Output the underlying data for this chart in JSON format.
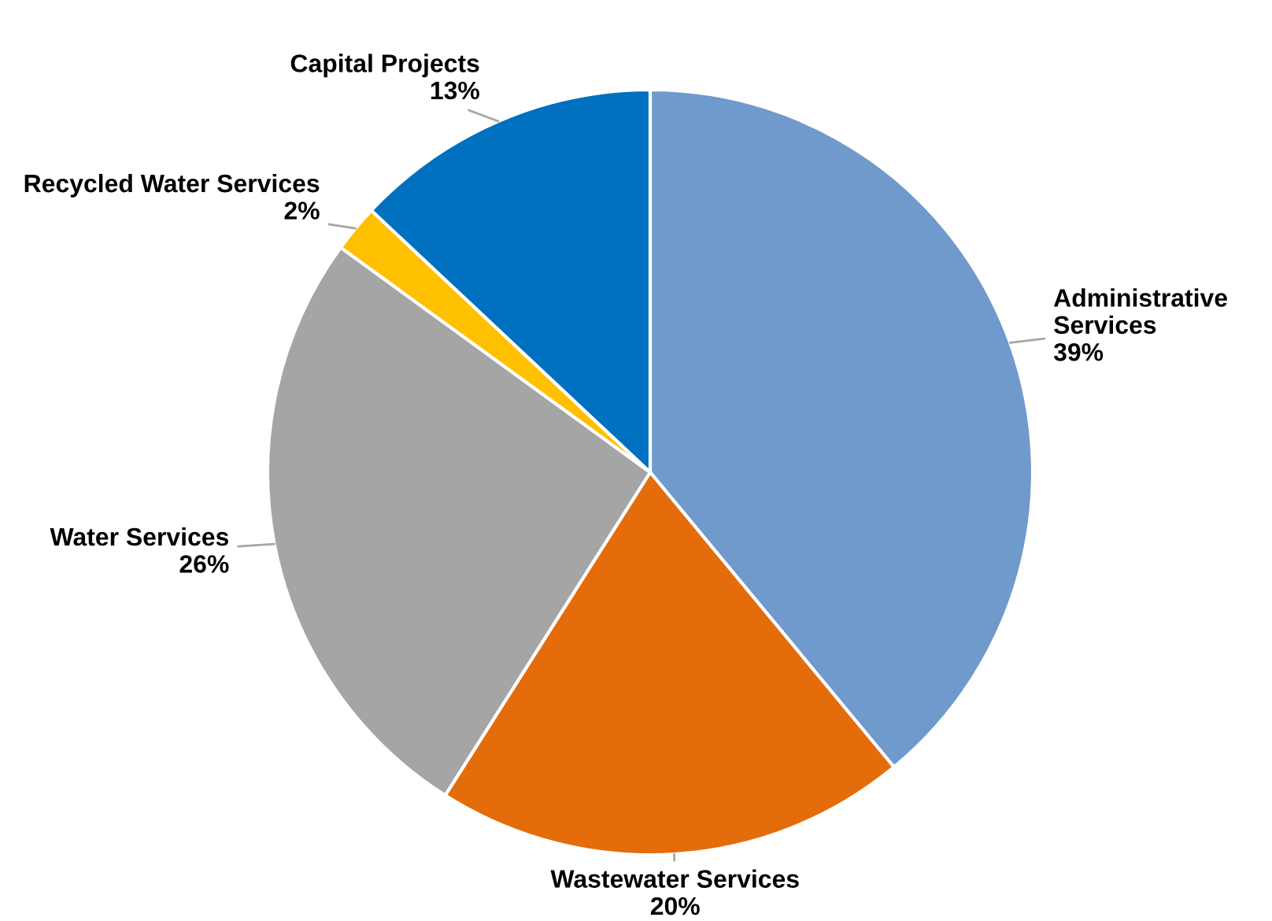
{
  "chart_data": {
    "type": "pie",
    "categories": [
      "Administrative\nServices",
      "Wastewater Services",
      "Water Services",
      "Recycled Water Services",
      "Capital Projects"
    ],
    "values": [
      39,
      20,
      26,
      2,
      13
    ],
    "colors": [
      "#7099cc",
      "#e46c0a",
      "#a5a5a5",
      "#ffc000",
      "#0070c0"
    ],
    "value_labels": [
      "39%",
      "20%",
      "26%",
      "2%",
      "13%"
    ],
    "legend": false
  }
}
